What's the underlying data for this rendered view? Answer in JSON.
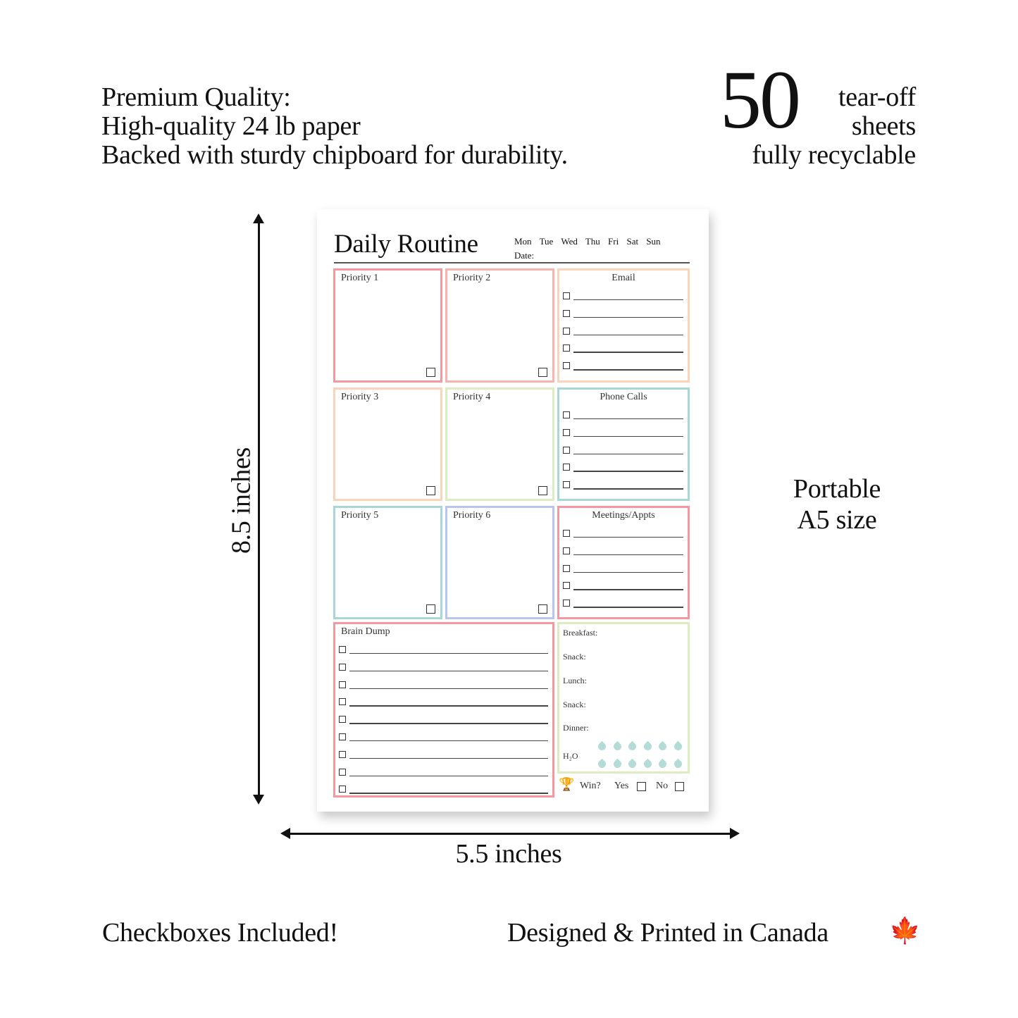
{
  "header_left": {
    "line1": "Premium Quality:",
    "line2": "High-quality 24 lb paper",
    "line3": "Backed with sturdy chipboard for durability."
  },
  "header_right": {
    "count": "50",
    "line1": "tear-off",
    "line2": "sheets",
    "line3": "fully recyclable"
  },
  "side_right": {
    "line1": "Portable",
    "line2": "A5 size"
  },
  "dimensions": {
    "height": "8.5 inches",
    "width": "5.5 inches"
  },
  "footer": {
    "left": "Checkboxes Included!",
    "right": "Designed & Printed in Canada",
    "flag_icon": "maple-leaf-icon"
  },
  "planner": {
    "title": "Daily Routine",
    "days": "Mon Tue Wed Thu Fri Sat Sun",
    "date_label": "Date:",
    "priorities": [
      "Priority 1",
      "Priority 2",
      "Priority 3",
      "Priority 4",
      "Priority 5",
      "Priority 6"
    ],
    "lists": [
      "Email",
      "Phone Calls",
      "Meetings/Appts"
    ],
    "brain_dump": "Brain Dump",
    "meals": [
      "Breakfast:",
      "Snack:",
      "Lunch:",
      "Snack:",
      "Dinner:"
    ],
    "water_label": "H₂O",
    "water_drops": 12,
    "win_label": "Win?",
    "yes_label": "Yes",
    "no_label": "No",
    "colors": {
      "pink": "#f5979f",
      "salmon": "#f7b3ad",
      "peach": "#fbd3b8",
      "green": "#dcedc4",
      "teal": "#a8d8d6",
      "lavender": "#b8c5ee"
    }
  }
}
